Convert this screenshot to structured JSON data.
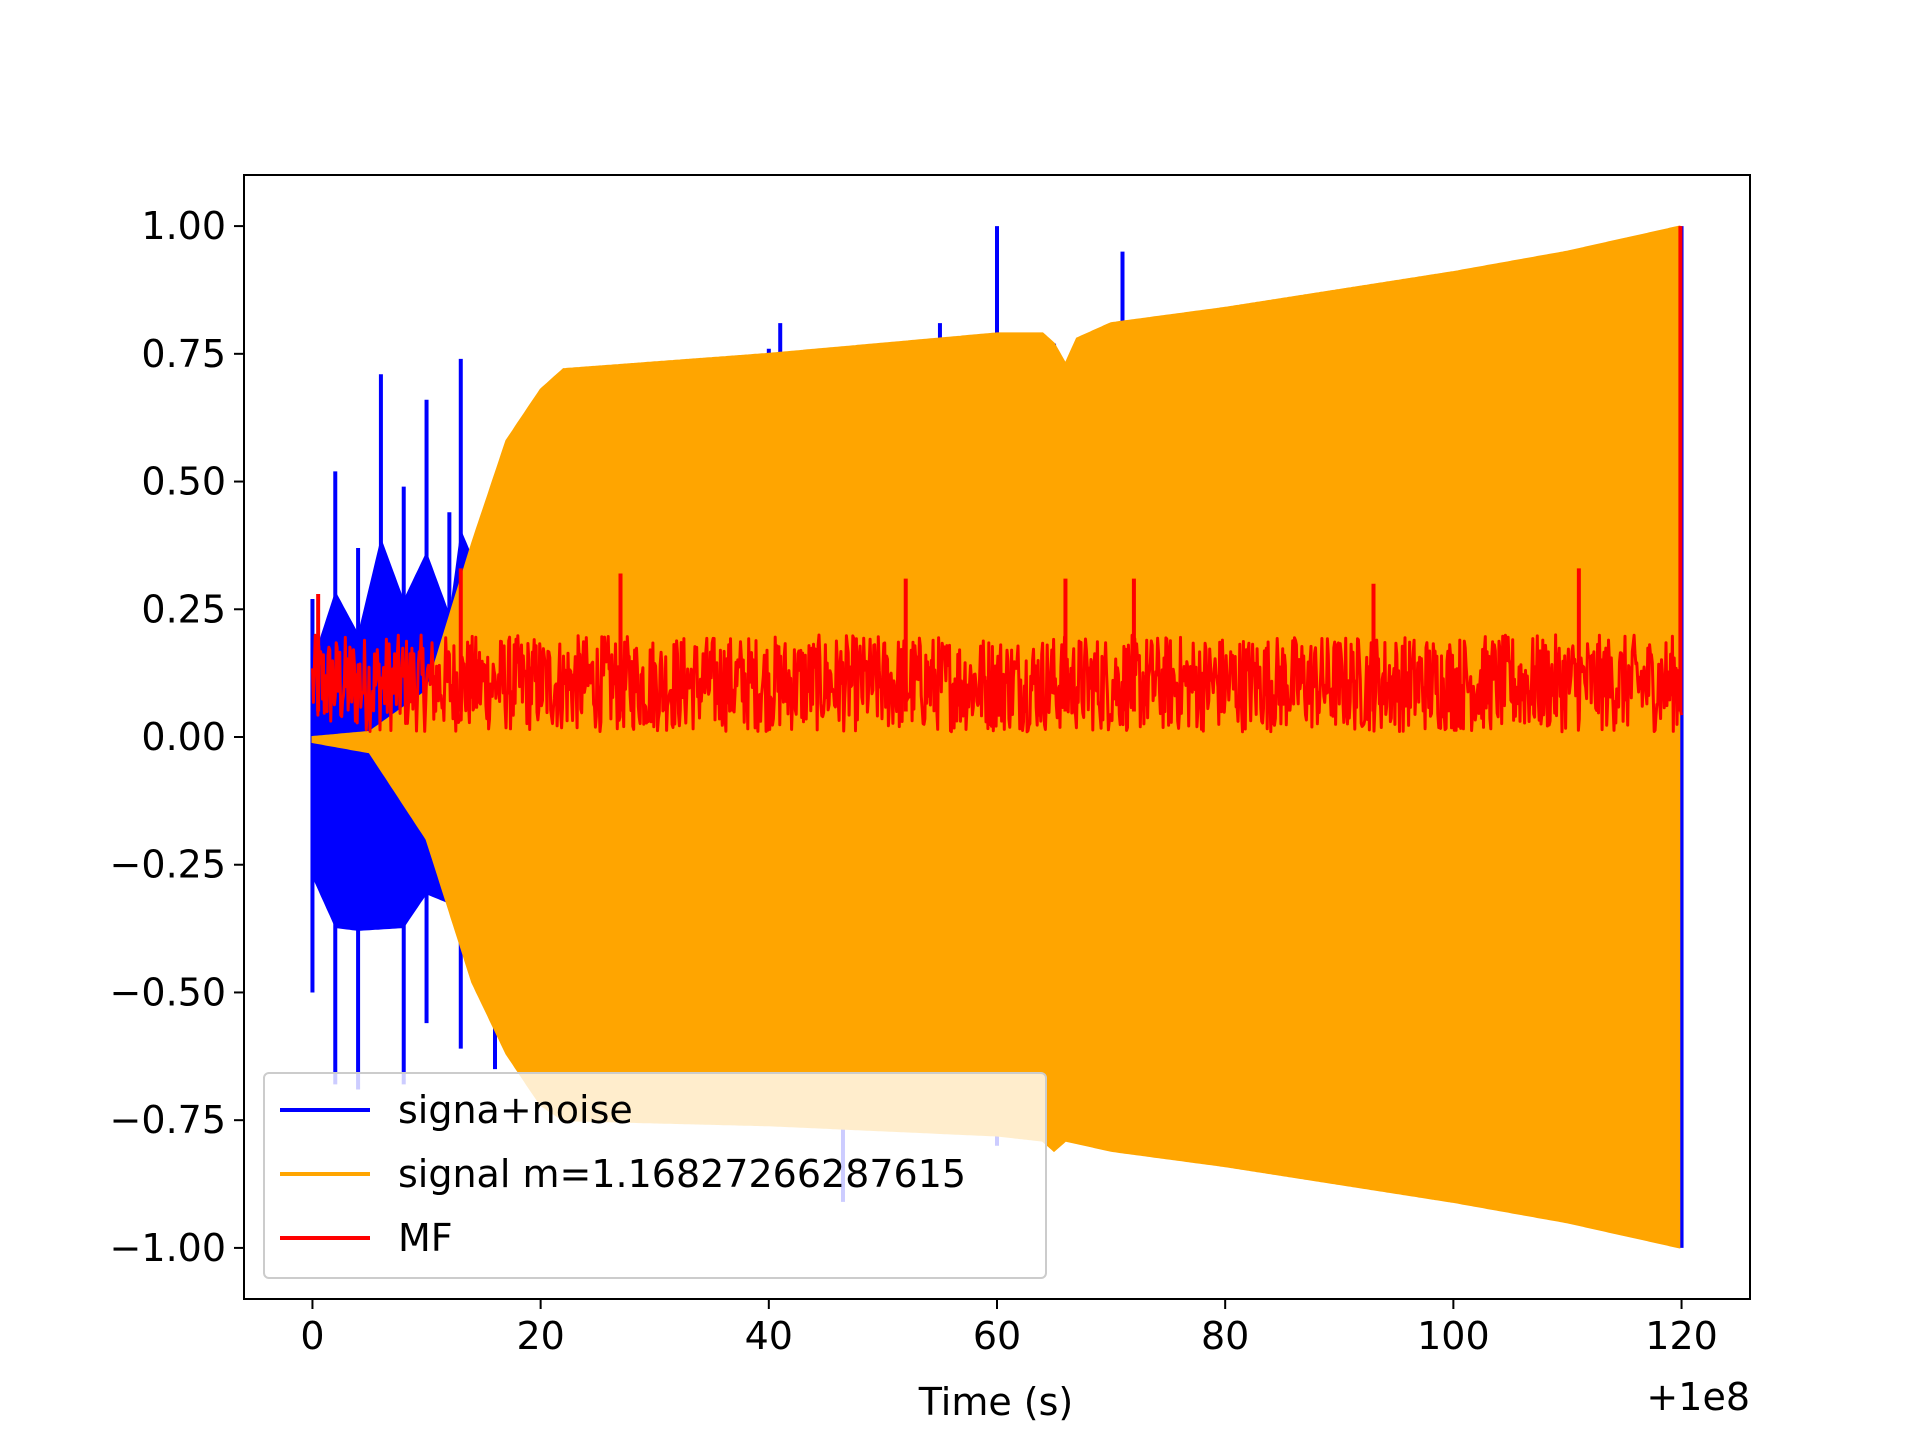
{
  "chart_data": {
    "type": "line",
    "title": "",
    "xlabel": "Time (s)",
    "ylabel": "",
    "x_offset_label": "+1e8",
    "xlim": [
      -6,
      126
    ],
    "ylim": [
      -1.1,
      1.1
    ],
    "x_ticks": [
      0,
      20,
      40,
      60,
      80,
      100,
      120
    ],
    "y_ticks": [
      1.0,
      0.75,
      0.5,
      0.25,
      0.0,
      -0.25,
      -0.5,
      -0.75,
      -1.0
    ],
    "x_tick_labels": [
      "0",
      "20",
      "40",
      "60",
      "80",
      "100",
      "120"
    ],
    "y_tick_labels": [
      "1.00",
      "0.75",
      "0.50",
      "0.25",
      "0.00",
      "−0.25",
      "−0.50",
      "−0.75",
      "−1.00"
    ],
    "grid": false,
    "legend_position": "lower-left",
    "series": [
      {
        "name": "signa+noise",
        "color": "#0000ff",
        "style": "noisy spikes, dense near start",
        "envelope_upper": [
          [
            0,
            0.27
          ],
          [
            2,
            0.52
          ],
          [
            4,
            0.37
          ],
          [
            6,
            0.71
          ],
          [
            8,
            0.49
          ],
          [
            10,
            0.66
          ],
          [
            12,
            0.44
          ],
          [
            13,
            0.74
          ],
          [
            16,
            0.45
          ],
          [
            20,
            0.52
          ],
          [
            40,
            0.76
          ],
          [
            41,
            0.81
          ],
          [
            55,
            0.81
          ],
          [
            60,
            1.0
          ],
          [
            65,
            0.77
          ],
          [
            71,
            0.95
          ],
          [
            93,
            0.88
          ],
          [
            120,
            1.0
          ]
        ],
        "envelope_lower": [
          [
            0,
            -0.5
          ],
          [
            2,
            -0.68
          ],
          [
            4,
            -0.69
          ],
          [
            8,
            -0.68
          ],
          [
            10,
            -0.56
          ],
          [
            13,
            -0.61
          ],
          [
            16,
            -0.65
          ],
          [
            20,
            -0.72
          ],
          [
            46.5,
            -0.91
          ],
          [
            60,
            -0.8
          ],
          [
            120,
            -1.0
          ]
        ]
      },
      {
        "name": "signal m=1.16827266287615",
        "color": "#ffa500",
        "style": "chirp oscillation envelope",
        "envelope_upper": [
          [
            0,
            0.0
          ],
          [
            5,
            0.01
          ],
          [
            10,
            0.09
          ],
          [
            14,
            0.38
          ],
          [
            17,
            0.58
          ],
          [
            20,
            0.68
          ],
          [
            22,
            0.72
          ],
          [
            40,
            0.75
          ],
          [
            60,
            0.79
          ],
          [
            64,
            0.79
          ],
          [
            65,
            0.77
          ],
          [
            66,
            0.73
          ],
          [
            67,
            0.78
          ],
          [
            70,
            0.81
          ],
          [
            80,
            0.84
          ],
          [
            100,
            0.91
          ],
          [
            110,
            0.95
          ],
          [
            120,
            1.0
          ]
        ],
        "envelope_lower": [
          [
            0,
            -0.01
          ],
          [
            5,
            -0.03
          ],
          [
            10,
            -0.2
          ],
          [
            14,
            -0.48
          ],
          [
            17,
            -0.62
          ],
          [
            20,
            -0.72
          ],
          [
            22,
            -0.75
          ],
          [
            40,
            -0.76
          ],
          [
            60,
            -0.78
          ],
          [
            64,
            -0.79
          ],
          [
            65,
            -0.81
          ],
          [
            66,
            -0.79
          ],
          [
            70,
            -0.81
          ],
          [
            80,
            -0.84
          ],
          [
            100,
            -0.91
          ],
          [
            110,
            -0.95
          ],
          [
            120,
            -1.0
          ]
        ]
      },
      {
        "name": "MF",
        "color": "#ff0000",
        "style": "noisy band with final spike",
        "band_low": 0.01,
        "band_high": 0.2,
        "peaks": [
          [
            0.5,
            0.28
          ],
          [
            13,
            0.33
          ],
          [
            27,
            0.32
          ],
          [
            52,
            0.31
          ],
          [
            66,
            0.31
          ],
          [
            72,
            0.31
          ],
          [
            93,
            0.3
          ],
          [
            111,
            0.33
          ],
          [
            119.9,
            1.0
          ]
        ]
      }
    ]
  }
}
